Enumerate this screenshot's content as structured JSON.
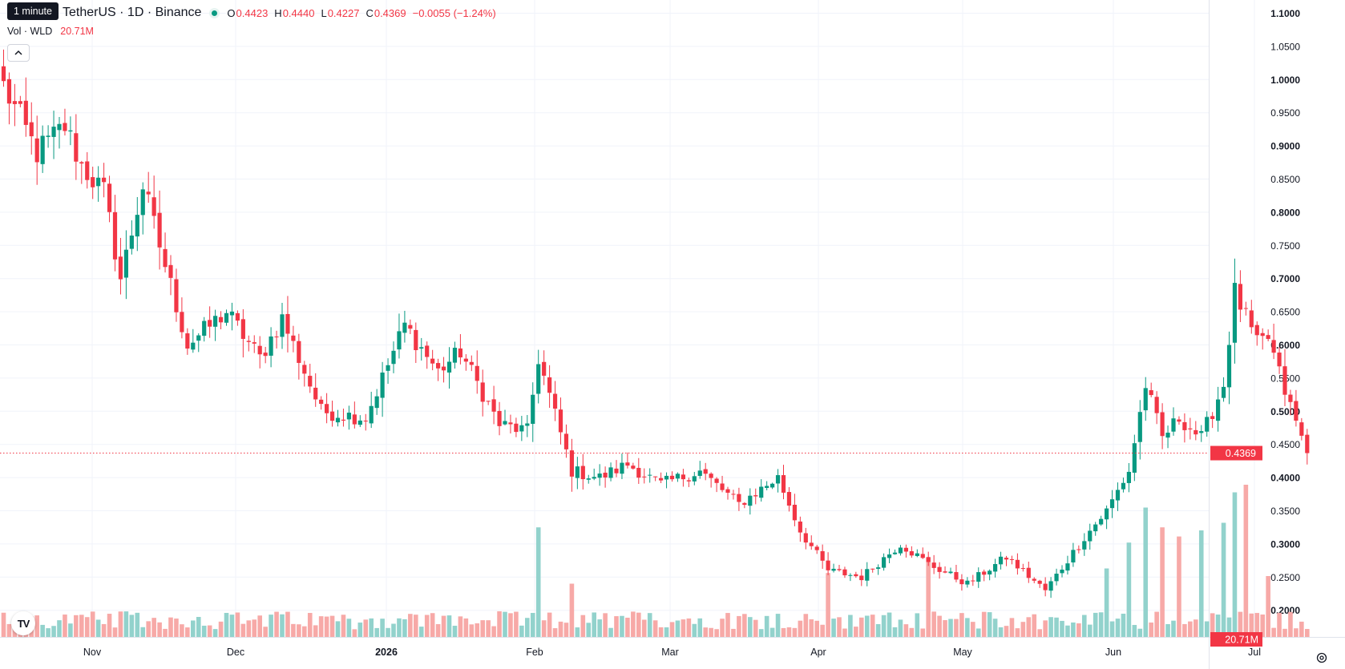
{
  "header": {
    "tooltip": "1 minute",
    "symbol": "TetherUS · 1D · Binance",
    "ohlc": [
      {
        "key": "O",
        "value": "0.4423"
      },
      {
        "key": "H",
        "value": "0.4440"
      },
      {
        "key": "L",
        "value": "0.4227"
      },
      {
        "key": "C",
        "value": "0.4369"
      }
    ],
    "change": "−0.0055 (−1.24%)"
  },
  "volume_legend": {
    "label": "Vol · WLD",
    "value": "20.71M"
  },
  "price_badge": "0.4369",
  "volume_badge": "20.71M",
  "logo": "TV",
  "colors": {
    "up": "#089981",
    "down": "#f23645",
    "up_volume": "#92d2cc",
    "down_volume": "#f7a9a7",
    "grid": "#f0f3fa",
    "text": "#131722"
  },
  "chart_data": {
    "type": "candlestick",
    "title": "",
    "y_axis": {
      "ticks": [
        "1.1000",
        "1.0500",
        "1.0000",
        "0.9500",
        "0.9000",
        "0.8500",
        "0.8000",
        "0.7500",
        "0.7000",
        "0.6500",
        "0.6000",
        "0.5500",
        "0.5000",
        "0.4500",
        "0.4000",
        "0.3500",
        "0.3000",
        "0.2500",
        "0.2000"
      ],
      "range": [
        0.17,
        1.11
      ],
      "bold_ticks": [
        "1.1000",
        "1.0000",
        "0.9000",
        "0.8000",
        "0.7000",
        "0.6000",
        "0.5000",
        "0.4000",
        "0.3000",
        "0.2000"
      ]
    },
    "x_axis": {
      "ticks": [
        "Nov",
        "Dec",
        "2026",
        "Feb",
        "Mar",
        "Apr",
        "May",
        "Jun",
        "Jul"
      ]
    },
    "last_price": 0.4369,
    "anchors": [
      {
        "day": 0,
        "price": 0.99
      },
      {
        "day": 6,
        "price": 0.89
      },
      {
        "day": 11,
        "price": 0.93
      },
      {
        "day": 14,
        "price": 0.87
      },
      {
        "day": 18,
        "price": 0.83
      },
      {
        "day": 21,
        "price": 0.7
      },
      {
        "day": 25,
        "price": 0.84
      },
      {
        "day": 33,
        "price": 0.6
      },
      {
        "day": 40,
        "price": 0.65
      },
      {
        "day": 46,
        "price": 0.58
      },
      {
        "day": 50,
        "price": 0.64
      },
      {
        "day": 57,
        "price": 0.5
      },
      {
        "day": 65,
        "price": 0.49
      },
      {
        "day": 72,
        "price": 0.63
      },
      {
        "day": 78,
        "price": 0.56
      },
      {
        "day": 82,
        "price": 0.59
      },
      {
        "day": 89,
        "price": 0.48
      },
      {
        "day": 94,
        "price": 0.47
      },
      {
        "day": 96,
        "price": 0.58
      },
      {
        "day": 102,
        "price": 0.41
      },
      {
        "day": 107,
        "price": 0.4
      },
      {
        "day": 112,
        "price": 0.42
      },
      {
        "day": 118,
        "price": 0.39
      },
      {
        "day": 125,
        "price": 0.41
      },
      {
        "day": 132,
        "price": 0.36
      },
      {
        "day": 139,
        "price": 0.4
      },
      {
        "day": 143,
        "price": 0.32
      },
      {
        "day": 148,
        "price": 0.26
      },
      {
        "day": 154,
        "price": 0.25
      },
      {
        "day": 161,
        "price": 0.3
      },
      {
        "day": 166,
        "price": 0.27
      },
      {
        "day": 173,
        "price": 0.24
      },
      {
        "day": 180,
        "price": 0.28
      },
      {
        "day": 187,
        "price": 0.23
      },
      {
        "day": 194,
        "price": 0.31
      },
      {
        "day": 198,
        "price": 0.35
      },
      {
        "day": 202,
        "price": 0.41
      },
      {
        "day": 205,
        "price": 0.54
      },
      {
        "day": 208,
        "price": 0.46
      },
      {
        "day": 211,
        "price": 0.49
      },
      {
        "day": 215,
        "price": 0.46
      },
      {
        "day": 219,
        "price": 0.54
      },
      {
        "day": 221,
        "price": 0.68
      },
      {
        "day": 225,
        "price": 0.6
      },
      {
        "day": 227,
        "price": 0.61
      },
      {
        "day": 230,
        "price": 0.53
      },
      {
        "day": 234,
        "price": 0.4369
      }
    ],
    "volume": {
      "series_name": "Vol · WLD",
      "last_value": "20.71M",
      "spikes": [
        {
          "day": 96,
          "relative": 0.72
        },
        {
          "day": 102,
          "relative": 0.35
        },
        {
          "day": 148,
          "relative": 0.42
        },
        {
          "day": 166,
          "relative": 0.52
        },
        {
          "day": 198,
          "relative": 0.45
        },
        {
          "day": 202,
          "relative": 0.62
        },
        {
          "day": 205,
          "relative": 0.85
        },
        {
          "day": 208,
          "relative": 0.72
        },
        {
          "day": 211,
          "relative": 0.66
        },
        {
          "day": 215,
          "relative": 0.7
        },
        {
          "day": 219,
          "relative": 0.75
        },
        {
          "day": 221,
          "relative": 0.95
        },
        {
          "day": 223,
          "relative": 1.0
        },
        {
          "day": 227,
          "relative": 0.4
        }
      ]
    }
  }
}
